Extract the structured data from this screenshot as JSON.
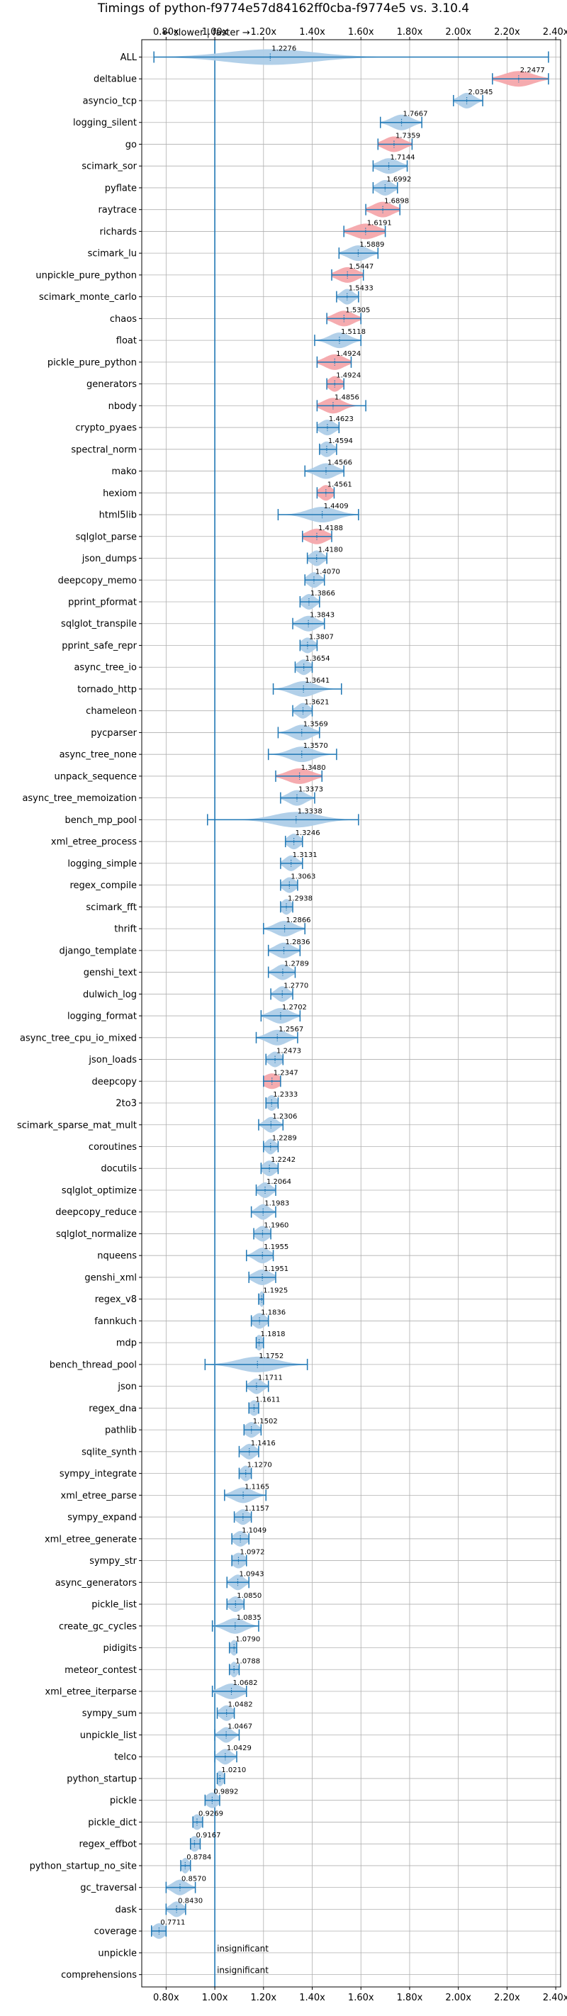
{
  "chart_data": {
    "type": "violin",
    "title": "Timings of python-f9774e57d84162ff0cba-f9774e5 vs. 3.10.4",
    "direction_annotation": "← slower | faster →",
    "insignificant_label": "insignificant",
    "xlim": [
      0.7,
      2.42
    ],
    "x_ticks": [
      0.8,
      1.0,
      1.2,
      1.4,
      1.6,
      1.8,
      2.0,
      2.2,
      2.4
    ],
    "x_tick_labels": [
      "0.80x",
      "1.00x",
      "1.20x",
      "1.40x",
      "1.60x",
      "1.80x",
      "2.00x",
      "2.20x",
      "2.40x"
    ],
    "grid": true,
    "reference_line": 1.0,
    "colors": {
      "normal": "#1f77b4",
      "highlight": "#f4a6ab",
      "violin": "#aecde8",
      "grid": "#b0b0b0"
    },
    "benchmarks": [
      {
        "name": "ALL",
        "value": 1.2276,
        "label": "1.2276",
        "low": 0.75,
        "high": 2.37,
        "spread": 0.18,
        "hl": false
      },
      {
        "name": "deltablue",
        "value": 2.2477,
        "label": "2.2477",
        "low": 2.14,
        "high": 2.37,
        "spread": 0.06,
        "hl": true
      },
      {
        "name": "asyncio_tcp",
        "value": 2.0345,
        "label": "2.0345",
        "low": 1.98,
        "high": 2.1,
        "spread": 0.03,
        "hl": false
      },
      {
        "name": "logging_silent",
        "value": 1.7667,
        "label": "1.7667",
        "low": 1.68,
        "high": 1.85,
        "spread": 0.04,
        "hl": false
      },
      {
        "name": "go",
        "value": 1.7359,
        "label": "1.7359",
        "low": 1.67,
        "high": 1.81,
        "spread": 0.04,
        "hl": true
      },
      {
        "name": "scimark_sor",
        "value": 1.7144,
        "label": "1.7144",
        "low": 1.65,
        "high": 1.79,
        "spread": 0.04,
        "hl": false
      },
      {
        "name": "pyflate",
        "value": 1.6992,
        "label": "1.6992",
        "low": 1.65,
        "high": 1.75,
        "spread": 0.03,
        "hl": false
      },
      {
        "name": "raytrace",
        "value": 1.6898,
        "label": "1.6898",
        "low": 1.62,
        "high": 1.76,
        "spread": 0.04,
        "hl": true
      },
      {
        "name": "richards",
        "value": 1.6191,
        "label": "1.6191",
        "low": 1.53,
        "high": 1.7,
        "spread": 0.05,
        "hl": true
      },
      {
        "name": "scimark_lu",
        "value": 1.5889,
        "label": "1.5889",
        "low": 1.51,
        "high": 1.67,
        "spread": 0.04,
        "hl": false
      },
      {
        "name": "unpickle_pure_python",
        "value": 1.5447,
        "label": "1.5447",
        "low": 1.48,
        "high": 1.61,
        "spread": 0.04,
        "hl": true
      },
      {
        "name": "scimark_monte_carlo",
        "value": 1.5433,
        "label": "1.5433",
        "low": 1.5,
        "high": 1.59,
        "spread": 0.025,
        "hl": false
      },
      {
        "name": "chaos",
        "value": 1.5305,
        "label": "1.5305",
        "low": 1.46,
        "high": 1.6,
        "spread": 0.04,
        "hl": true
      },
      {
        "name": "float",
        "value": 1.5118,
        "label": "1.5118",
        "low": 1.41,
        "high": 1.6,
        "spread": 0.04,
        "hl": false
      },
      {
        "name": "pickle_pure_python",
        "value": 1.4924,
        "label": "1.4924",
        "low": 1.42,
        "high": 1.56,
        "spread": 0.04,
        "hl": true
      },
      {
        "name": "generators",
        "value": 1.4924,
        "label": "1.4924",
        "low": 1.46,
        "high": 1.53,
        "spread": 0.025,
        "hl": true
      },
      {
        "name": "nbody",
        "value": 1.4856,
        "label": "1.4856",
        "low": 1.42,
        "high": 1.62,
        "spread": 0.04,
        "hl": true
      },
      {
        "name": "crypto_pyaes",
        "value": 1.4623,
        "label": "1.4623",
        "low": 1.42,
        "high": 1.51,
        "spread": 0.03,
        "hl": false
      },
      {
        "name": "spectral_norm",
        "value": 1.4594,
        "label": "1.4594",
        "low": 1.43,
        "high": 1.5,
        "spread": 0.025,
        "hl": false
      },
      {
        "name": "mako",
        "value": 1.4566,
        "label": "1.4566",
        "low": 1.37,
        "high": 1.53,
        "spread": 0.04,
        "hl": false
      },
      {
        "name": "hexiom",
        "value": 1.4561,
        "label": "1.4561",
        "low": 1.42,
        "high": 1.49,
        "spread": 0.025,
        "hl": true
      },
      {
        "name": "html5lib",
        "value": 1.4409,
        "label": "1.4409",
        "low": 1.26,
        "high": 1.59,
        "spread": 0.06,
        "hl": false
      },
      {
        "name": "sqlglot_parse",
        "value": 1.4188,
        "label": "1.4188",
        "low": 1.36,
        "high": 1.48,
        "spread": 0.04,
        "hl": true
      },
      {
        "name": "json_dumps",
        "value": 1.418,
        "label": "1.4180",
        "low": 1.38,
        "high": 1.46,
        "spread": 0.025,
        "hl": false
      },
      {
        "name": "deepcopy_memo",
        "value": 1.407,
        "label": "1.4070",
        "low": 1.37,
        "high": 1.45,
        "spread": 0.025,
        "hl": false
      },
      {
        "name": "pprint_pformat",
        "value": 1.3866,
        "label": "1.3866",
        "low": 1.35,
        "high": 1.43,
        "spread": 0.025,
        "hl": false
      },
      {
        "name": "sqlglot_transpile",
        "value": 1.3843,
        "label": "1.3843",
        "low": 1.32,
        "high": 1.45,
        "spread": 0.035,
        "hl": false
      },
      {
        "name": "pprint_safe_repr",
        "value": 1.3807,
        "label": "1.3807",
        "low": 1.35,
        "high": 1.42,
        "spread": 0.025,
        "hl": false
      },
      {
        "name": "async_tree_io",
        "value": 1.3654,
        "label": "1.3654",
        "low": 1.33,
        "high": 1.4,
        "spread": 0.025,
        "hl": false
      },
      {
        "name": "tornado_http",
        "value": 1.3641,
        "label": "1.3641",
        "low": 1.24,
        "high": 1.52,
        "spread": 0.05,
        "hl": false
      },
      {
        "name": "chameleon",
        "value": 1.3621,
        "label": "1.3621",
        "low": 1.32,
        "high": 1.4,
        "spread": 0.025,
        "hl": false
      },
      {
        "name": "pycparser",
        "value": 1.3569,
        "label": "1.3569",
        "low": 1.26,
        "high": 1.43,
        "spread": 0.04,
        "hl": false
      },
      {
        "name": "async_tree_none",
        "value": 1.357,
        "label": "1.3570",
        "low": 1.22,
        "high": 1.5,
        "spread": 0.05,
        "hl": false
      },
      {
        "name": "unpack_sequence",
        "value": 1.348,
        "label": "1.3480",
        "low": 1.25,
        "high": 1.44,
        "spread": 0.05,
        "hl": true
      },
      {
        "name": "async_tree_memoization",
        "value": 1.3373,
        "label": "1.3373",
        "low": 1.27,
        "high": 1.41,
        "spread": 0.035,
        "hl": false
      },
      {
        "name": "bench_mp_pool",
        "value": 1.3338,
        "label": "1.3338",
        "low": 0.97,
        "high": 1.59,
        "spread": 0.09,
        "hl": false
      },
      {
        "name": "xml_etree_process",
        "value": 1.3246,
        "label": "1.3246",
        "low": 1.29,
        "high": 1.36,
        "spread": 0.025,
        "hl": false
      },
      {
        "name": "logging_simple",
        "value": 1.3131,
        "label": "1.3131",
        "low": 1.27,
        "high": 1.36,
        "spread": 0.025,
        "hl": false
      },
      {
        "name": "regex_compile",
        "value": 1.3063,
        "label": "1.3063",
        "low": 1.27,
        "high": 1.34,
        "spread": 0.025,
        "hl": false
      },
      {
        "name": "scimark_fft",
        "value": 1.2938,
        "label": "1.2938",
        "low": 1.27,
        "high": 1.32,
        "spread": 0.02,
        "hl": false
      },
      {
        "name": "thrift",
        "value": 1.2866,
        "label": "1.2866",
        "low": 1.2,
        "high": 1.37,
        "spread": 0.04,
        "hl": false
      },
      {
        "name": "django_template",
        "value": 1.2836,
        "label": "1.2836",
        "low": 1.22,
        "high": 1.35,
        "spread": 0.035,
        "hl": false
      },
      {
        "name": "genshi_text",
        "value": 1.2789,
        "label": "1.2789",
        "low": 1.22,
        "high": 1.33,
        "spread": 0.03,
        "hl": false
      },
      {
        "name": "dulwich_log",
        "value": 1.277,
        "label": "1.2770",
        "low": 1.23,
        "high": 1.32,
        "spread": 0.025,
        "hl": false
      },
      {
        "name": "logging_format",
        "value": 1.2702,
        "label": "1.2702",
        "low": 1.19,
        "high": 1.35,
        "spread": 0.04,
        "hl": false
      },
      {
        "name": "async_tree_cpu_io_mixed",
        "value": 1.2567,
        "label": "1.2567",
        "low": 1.17,
        "high": 1.34,
        "spread": 0.04,
        "hl": false
      },
      {
        "name": "json_loads",
        "value": 1.2473,
        "label": "1.2473",
        "low": 1.21,
        "high": 1.28,
        "spread": 0.025,
        "hl": false
      },
      {
        "name": "deepcopy",
        "value": 1.2347,
        "label": "1.2347",
        "low": 1.2,
        "high": 1.27,
        "spread": 0.035,
        "hl": true
      },
      {
        "name": "2to3",
        "value": 1.2333,
        "label": "1.2333",
        "low": 1.21,
        "high": 1.26,
        "spread": 0.02,
        "hl": false
      },
      {
        "name": "scimark_sparse_mat_mult",
        "value": 1.2306,
        "label": "1.2306",
        "low": 1.18,
        "high": 1.28,
        "spread": 0.025,
        "hl": false
      },
      {
        "name": "coroutines",
        "value": 1.2289,
        "label": "1.2289",
        "low": 1.2,
        "high": 1.26,
        "spread": 0.02,
        "hl": false
      },
      {
        "name": "docutils",
        "value": 1.2242,
        "label": "1.2242",
        "low": 1.19,
        "high": 1.26,
        "spread": 0.025,
        "hl": false
      },
      {
        "name": "sqlglot_optimize",
        "value": 1.2064,
        "label": "1.2064",
        "low": 1.17,
        "high": 1.25,
        "spread": 0.025,
        "hl": false
      },
      {
        "name": "deepcopy_reduce",
        "value": 1.1983,
        "label": "1.1983",
        "low": 1.15,
        "high": 1.25,
        "spread": 0.025,
        "hl": false
      },
      {
        "name": "sqlglot_normalize",
        "value": 1.196,
        "label": "1.1960",
        "low": 1.16,
        "high": 1.23,
        "spread": 0.025,
        "hl": false
      },
      {
        "name": "nqueens",
        "value": 1.1955,
        "label": "1.1955",
        "low": 1.13,
        "high": 1.24,
        "spread": 0.03,
        "hl": false
      },
      {
        "name": "genshi_xml",
        "value": 1.1951,
        "label": "1.1951",
        "low": 1.14,
        "high": 1.25,
        "spread": 0.035,
        "hl": false
      },
      {
        "name": "regex_v8",
        "value": 1.1925,
        "label": "1.1925",
        "low": 1.18,
        "high": 1.2,
        "spread": 0.01,
        "hl": false
      },
      {
        "name": "fannkuch",
        "value": 1.1836,
        "label": "1.1836",
        "low": 1.15,
        "high": 1.22,
        "spread": 0.025,
        "hl": false
      },
      {
        "name": "mdp",
        "value": 1.1818,
        "label": "1.1818",
        "low": 1.17,
        "high": 1.2,
        "spread": 0.015,
        "hl": false
      },
      {
        "name": "bench_thread_pool",
        "value": 1.1752,
        "label": "1.1752",
        "low": 0.96,
        "high": 1.38,
        "spread": 0.08,
        "hl": false
      },
      {
        "name": "json",
        "value": 1.1711,
        "label": "1.1711",
        "low": 1.13,
        "high": 1.22,
        "spread": 0.025,
        "hl": false
      },
      {
        "name": "regex_dna",
        "value": 1.1611,
        "label": "1.1611",
        "low": 1.14,
        "high": 1.18,
        "spread": 0.02,
        "hl": false
      },
      {
        "name": "pathlib",
        "value": 1.1502,
        "label": "1.1502",
        "low": 1.12,
        "high": 1.19,
        "spread": 0.025,
        "hl": false
      },
      {
        "name": "sqlite_synth",
        "value": 1.1416,
        "label": "1.1416",
        "low": 1.1,
        "high": 1.18,
        "spread": 0.025,
        "hl": false
      },
      {
        "name": "sympy_integrate",
        "value": 1.127,
        "label": "1.1270",
        "low": 1.1,
        "high": 1.15,
        "spread": 0.02,
        "hl": false
      },
      {
        "name": "xml_etree_parse",
        "value": 1.1165,
        "label": "1.1165",
        "low": 1.04,
        "high": 1.21,
        "spread": 0.04,
        "hl": false
      },
      {
        "name": "sympy_expand",
        "value": 1.1157,
        "label": "1.1157",
        "low": 1.08,
        "high": 1.15,
        "spread": 0.025,
        "hl": false
      },
      {
        "name": "xml_etree_generate",
        "value": 1.1049,
        "label": "1.1049",
        "low": 1.07,
        "high": 1.14,
        "spread": 0.025,
        "hl": false
      },
      {
        "name": "sympy_str",
        "value": 1.0972,
        "label": "1.0972",
        "low": 1.07,
        "high": 1.13,
        "spread": 0.025,
        "hl": false
      },
      {
        "name": "async_generators",
        "value": 1.0943,
        "label": "1.0943",
        "low": 1.05,
        "high": 1.14,
        "spread": 0.025,
        "hl": false
      },
      {
        "name": "pickle_list",
        "value": 1.085,
        "label": "1.0850",
        "low": 1.05,
        "high": 1.12,
        "spread": 0.025,
        "hl": false
      },
      {
        "name": "create_gc_cycles",
        "value": 1.0835,
        "label": "1.0835",
        "low": 0.99,
        "high": 1.18,
        "spread": 0.04,
        "hl": false
      },
      {
        "name": "pidigits",
        "value": 1.079,
        "label": "1.0790",
        "low": 1.06,
        "high": 1.09,
        "spread": 0.015,
        "hl": false
      },
      {
        "name": "meteor_contest",
        "value": 1.0788,
        "label": "1.0788",
        "low": 1.06,
        "high": 1.1,
        "spread": 0.015,
        "hl": false
      },
      {
        "name": "xml_etree_iterparse",
        "value": 1.0682,
        "label": "1.0682",
        "low": 0.99,
        "high": 1.13,
        "spread": 0.04,
        "hl": false
      },
      {
        "name": "sympy_sum",
        "value": 1.0482,
        "label": "1.0482",
        "low": 1.01,
        "high": 1.08,
        "spread": 0.025,
        "hl": false
      },
      {
        "name": "unpickle_list",
        "value": 1.0467,
        "label": "1.0467",
        "low": 1.0,
        "high": 1.1,
        "spread": 0.025,
        "hl": false
      },
      {
        "name": "telco",
        "value": 1.0429,
        "label": "1.0429",
        "low": 1.0,
        "high": 1.09,
        "spread": 0.025,
        "hl": false
      },
      {
        "name": "python_startup",
        "value": 1.021,
        "label": "1.0210",
        "low": 1.01,
        "high": 1.04,
        "spread": 0.015,
        "hl": false
      },
      {
        "name": "pickle",
        "value": 0.9892,
        "label": "0.9892",
        "low": 0.96,
        "high": 1.02,
        "spread": 0.025,
        "hl": false
      },
      {
        "name": "pickle_dict",
        "value": 0.9269,
        "label": "0.9269",
        "low": 0.91,
        "high": 0.95,
        "spread": 0.02,
        "hl": false
      },
      {
        "name": "regex_effbot",
        "value": 0.9167,
        "label": "0.9167",
        "low": 0.9,
        "high": 0.94,
        "spread": 0.02,
        "hl": false
      },
      {
        "name": "python_startup_no_site",
        "value": 0.8784,
        "label": "0.8784",
        "low": 0.86,
        "high": 0.9,
        "spread": 0.015,
        "hl": false
      },
      {
        "name": "gc_traversal",
        "value": 0.857,
        "label": "0.8570",
        "low": 0.8,
        "high": 0.92,
        "spread": 0.03,
        "hl": false
      },
      {
        "name": "dask",
        "value": 0.843,
        "label": "0.8430",
        "low": 0.8,
        "high": 0.88,
        "spread": 0.025,
        "hl": false
      },
      {
        "name": "coverage",
        "value": 0.7711,
        "label": "0.7711",
        "low": 0.74,
        "high": 0.8,
        "spread": 0.025,
        "hl": false
      },
      {
        "name": "unpickle",
        "value": null,
        "label": "",
        "low": null,
        "high": null,
        "spread": 0,
        "hl": false,
        "insignificant": true
      },
      {
        "name": "comprehensions",
        "value": null,
        "label": "",
        "low": null,
        "high": null,
        "spread": 0,
        "hl": false,
        "insignificant": true
      }
    ]
  }
}
